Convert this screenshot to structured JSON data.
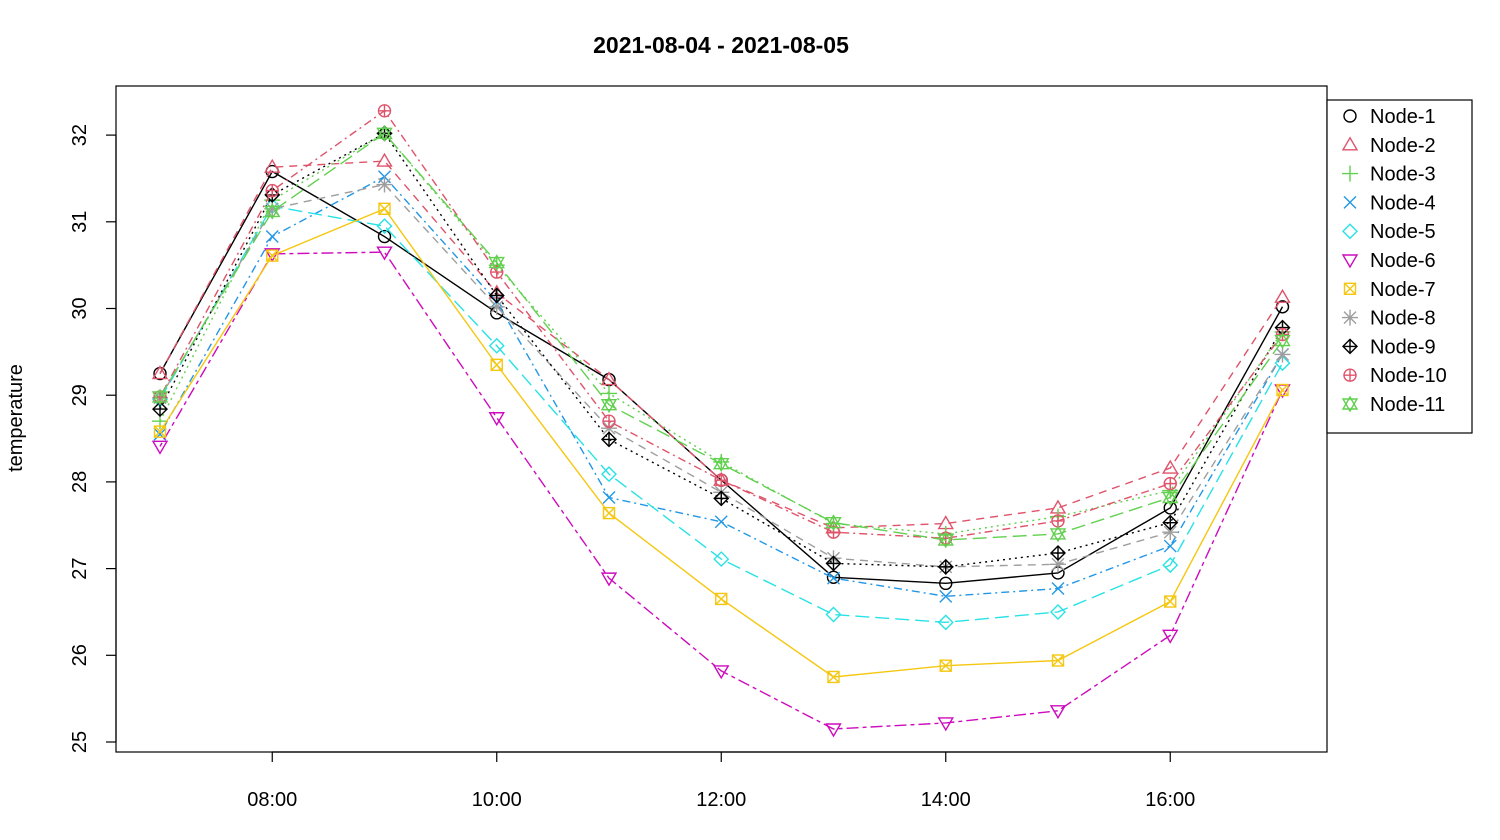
{
  "chart_data": {
    "type": "line",
    "title": "2021-08-04 - 2021-08-05",
    "xlabel": "",
    "ylabel": "temperature",
    "x": [
      "07:00",
      "08:00",
      "09:00",
      "10:00",
      "11:00",
      "12:00",
      "13:00",
      "14:00",
      "15:00",
      "16:00",
      "17:00"
    ],
    "x_tick_labels": [
      "08:00",
      "10:00",
      "12:00",
      "14:00",
      "16:00"
    ],
    "y_ticks": [
      25,
      26,
      27,
      28,
      29,
      30,
      31,
      32
    ],
    "ylim": [
      25.0,
      32.55
    ],
    "grid": false,
    "legend_position": "right, outside plot",
    "series": [
      {
        "name": "Node-1",
        "color": "#000000",
        "marker": "circle",
        "line": "solid",
        "values": [
          29.25,
          31.58,
          30.83,
          29.95,
          29.18,
          28.02,
          26.9,
          26.83,
          26.95,
          27.7,
          30.02
        ]
      },
      {
        "name": "Node-2",
        "color": "#DF536B",
        "marker": "triangle",
        "line": "dashed",
        "values": [
          29.25,
          31.63,
          31.7,
          30.18,
          29.18,
          28.02,
          27.47,
          27.52,
          27.7,
          28.16,
          30.13
        ]
      },
      {
        "name": "Node-3",
        "color": "#61D04F",
        "marker": "plus",
        "line": "dotted",
        "values": [
          28.7,
          31.25,
          32.02,
          30.5,
          29.02,
          28.23,
          27.52,
          27.4,
          27.6,
          27.9,
          29.73
        ]
      },
      {
        "name": "Node-4",
        "color": "#2297E6",
        "marker": "cross",
        "line": "dotdash",
        "values": [
          28.55,
          30.83,
          31.52,
          30.08,
          27.82,
          27.54,
          26.89,
          26.68,
          26.77,
          27.26,
          29.47
        ]
      },
      {
        "name": "Node-5",
        "color": "#28E2E5",
        "marker": "diamond",
        "line": "longdash",
        "values": [
          28.95,
          31.18,
          30.95,
          29.57,
          28.09,
          27.11,
          26.47,
          26.38,
          26.5,
          27.04,
          29.37
        ]
      },
      {
        "name": "Node-6",
        "color": "#CD0BBC",
        "marker": "triangle-down",
        "line": "twodash",
        "values": [
          28.41,
          30.63,
          30.65,
          28.74,
          26.89,
          25.82,
          25.15,
          25.22,
          25.36,
          26.23,
          29.06
        ]
      },
      {
        "name": "Node-7",
        "color": "#F5C710",
        "marker": "square-x",
        "line": "solid",
        "values": [
          28.58,
          30.61,
          31.15,
          29.35,
          27.64,
          26.65,
          25.75,
          25.88,
          25.94,
          26.62,
          29.06
        ]
      },
      {
        "name": "Node-8",
        "color": "#9E9E9E",
        "marker": "asterisk",
        "line": "dashed",
        "values": [
          28.97,
          31.15,
          31.43,
          30.02,
          28.62,
          27.88,
          27.12,
          27.02,
          27.05,
          27.42,
          29.47
        ]
      },
      {
        "name": "Node-9",
        "color": "#000000",
        "marker": "diamond-plus",
        "line": "dotted",
        "values": [
          28.84,
          31.31,
          32.02,
          30.15,
          28.49,
          27.81,
          27.06,
          27.02,
          27.18,
          27.53,
          29.78
        ]
      },
      {
        "name": "Node-10",
        "color": "#DF536B",
        "marker": "circle-plus",
        "line": "dotdash",
        "values": [
          28.98,
          31.36,
          32.28,
          30.42,
          28.7,
          28.02,
          27.42,
          27.35,
          27.55,
          27.98,
          29.7
        ]
      },
      {
        "name": "Node-11",
        "color": "#61D04F",
        "marker": "hexagram",
        "line": "longdash",
        "values": [
          28.98,
          31.12,
          32.02,
          30.53,
          28.89,
          28.21,
          27.53,
          27.33,
          27.4,
          27.82,
          29.63
        ]
      }
    ]
  }
}
